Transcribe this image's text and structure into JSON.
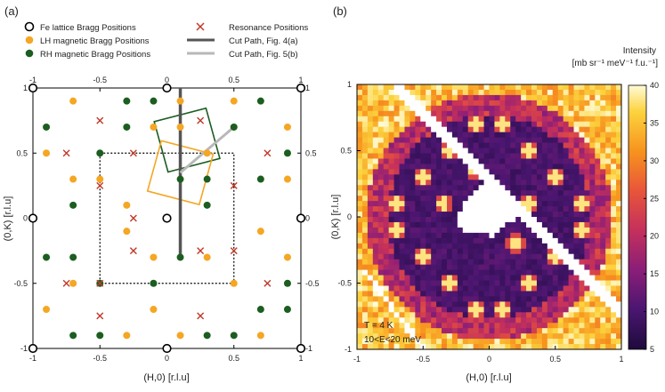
{
  "chart_data": [
    {
      "type": "scatter",
      "panel_label": "(a)",
      "xlabel": "(H,0) [r.l.u]",
      "ylabel": "(0,K) [r.l.u]",
      "xlim": [
        -1,
        1
      ],
      "ylim": [
        -1,
        1
      ],
      "ticks": [
        -1,
        -0.5,
        0,
        0.5,
        1
      ],
      "tick_labels": [
        "-1",
        "-0.5",
        "0",
        "0.5",
        "1"
      ],
      "legend": {
        "placement": "top",
        "entries": [
          {
            "key": "fe",
            "label": "Fe lattice Bragg Positions"
          },
          {
            "key": "lh",
            "label": "LH magnetic Bragg Positions"
          },
          {
            "key": "rh",
            "label": "RH magnetic Bragg Positions"
          },
          {
            "key": "res",
            "label": "Resonance Positions"
          },
          {
            "key": "cut4",
            "label": "Cut Path, Fig. 4(a)"
          },
          {
            "key": "cut5",
            "label": "Cut Path, Fig. 5(b)"
          }
        ]
      },
      "colors": {
        "fe": "#000000",
        "lh": "#f5a623",
        "rh": "#1b5e20",
        "res": "#c0392b",
        "cut4": "#555555",
        "cut5": "#b8b8b8"
      },
      "series": [
        {
          "name": "Fe lattice Bragg Positions",
          "points": [
            [
              0,
              0
            ],
            [
              -1,
              -1
            ],
            [
              0,
              -1
            ],
            [
              1,
              -1
            ],
            [
              -1,
              0
            ],
            [
              1,
              0
            ],
            [
              -1,
              1
            ],
            [
              0,
              1
            ],
            [
              1,
              1
            ]
          ]
        },
        {
          "name": "LH magnetic Bragg Positions",
          "points": [
            [
              -0.7,
              0.9
            ],
            [
              0.5,
              0.9
            ],
            [
              0.9,
              0.7
            ],
            [
              -0.9,
              0.5
            ],
            [
              0.9,
              -0.3
            ],
            [
              -0.3,
              -0.9
            ],
            [
              0.7,
              -0.9
            ],
            [
              -0.7,
              0.3
            ],
            [
              -0.1,
              0.7
            ],
            [
              0.9,
              0.3
            ],
            [
              0.1,
              0.7
            ],
            [
              0.3,
              0.5
            ],
            [
              0.7,
              -0.1
            ],
            [
              -0.5,
              0.3
            ],
            [
              -0.3,
              -0.1
            ],
            [
              -0.1,
              -0.7
            ],
            [
              0.5,
              -0.5
            ],
            [
              -0.7,
              -0.5
            ],
            [
              -0.1,
              -0.3
            ],
            [
              0.3,
              -0.3
            ],
            [
              -0.9,
              -0.7
            ],
            [
              0.1,
              0.9
            ],
            [
              -0.3,
              0.1
            ],
            [
              0.1,
              -0.9
            ],
            [
              0.5,
              0.7
            ]
          ]
        },
        {
          "name": "RH magnetic Bragg Positions",
          "points": [
            [
              -0.3,
              0.9
            ],
            [
              0.7,
              0.9
            ],
            [
              -0.9,
              0.7
            ],
            [
              0.5,
              0.7
            ],
            [
              -0.7,
              0.1
            ],
            [
              -0.1,
              0.9
            ],
            [
              0.9,
              0.5
            ],
            [
              -0.5,
              -0.5
            ],
            [
              0.3,
              0.1
            ],
            [
              0.1,
              0.3
            ],
            [
              -0.7,
              -0.3
            ],
            [
              -0.9,
              -0.3
            ],
            [
              0.9,
              -0.5
            ],
            [
              -0.3,
              0.7
            ],
            [
              -0.5,
              0.5
            ],
            [
              0.3,
              0.3
            ],
            [
              0.7,
              0.3
            ],
            [
              0.9,
              -0.7
            ],
            [
              0.7,
              -0.7
            ],
            [
              -0.1,
              -0.5
            ],
            [
              0.1,
              -0.3
            ],
            [
              -0.5,
              -0.9
            ],
            [
              0.5,
              -0.9
            ],
            [
              -0.7,
              -0.9
            ],
            [
              0.3,
              -0.9
            ]
          ]
        },
        {
          "name": "Resonance Positions",
          "points": [
            [
              -0.5,
              0.75
            ],
            [
              0.25,
              0.75
            ],
            [
              0.75,
              0.5
            ],
            [
              -0.75,
              0.5
            ],
            [
              -0.25,
              0.5
            ],
            [
              0.5,
              0.25
            ],
            [
              -0.5,
              0.25
            ],
            [
              0.25,
              -0.25
            ],
            [
              -0.25,
              -0.25
            ],
            [
              -0.75,
              -0.5
            ],
            [
              0.75,
              -0.5
            ],
            [
              -0.5,
              -0.75
            ],
            [
              0.25,
              -0.75
            ],
            [
              -0.25,
              0.0
            ],
            [
              0.5,
              -0.25
            ],
            [
              -0.5,
              -0.5
            ]
          ]
        }
      ],
      "cut_path_4a": [
        [
          0.1,
          1.0
        ],
        [
          0.1,
          -0.3
        ]
      ],
      "cut_path_5b": [
        [
          0.1,
          0.35
        ],
        [
          0.5,
          0.7
        ]
      ],
      "dotted_square": {
        "h": [
          -0.5,
          0.5
        ],
        "k": [
          -0.5,
          0.5
        ]
      },
      "squares": [
        {
          "color": "rh",
          "center": [
            0.15,
            0.6
          ],
          "half": 0.2,
          "angle_deg": 15
        },
        {
          "color": "lh",
          "center": [
            0.1,
            0.35
          ],
          "half": 0.2,
          "angle_deg": -15
        }
      ]
    },
    {
      "type": "heatmap",
      "panel_label": "(b)",
      "xlabel": "(H,0) [r.l.u]",
      "ylabel": "(0,K) [r.l.u]",
      "xlim": [
        -1,
        1
      ],
      "ylim": [
        -1,
        1
      ],
      "ticks": [
        -1,
        -0.5,
        0,
        0.5,
        1
      ],
      "tick_labels": [
        "-1",
        "-0.5",
        "0",
        "0.5",
        "1"
      ],
      "colorbar": {
        "title": "Intensity",
        "units": "[mb sr⁻¹ meV⁻¹ f.u.⁻¹]",
        "range": [
          5,
          40
        ],
        "ticks": [
          5,
          10,
          15,
          20,
          25,
          30,
          35,
          40
        ],
        "tick_labels": [
          "5",
          "10",
          "15",
          "20",
          "25",
          "30",
          "35",
          "40"
        ]
      },
      "annotation_temperature": "T = 4 K",
      "annotation_energy": "10<E<20 meV",
      "ring_radius": 0.85,
      "ring_intensity": 18,
      "inside_intensity": 9,
      "outside_intensity": 36,
      "bright_spots": [
        [
          -0.1,
          0.7
        ],
        [
          0.1,
          0.7
        ],
        [
          -0.3,
          0.5
        ],
        [
          0.3,
          0.5
        ],
        [
          -0.5,
          0.3
        ],
        [
          0.5,
          0.3
        ],
        [
          -0.7,
          0.1
        ],
        [
          0.7,
          0.1
        ],
        [
          -0.7,
          -0.1
        ],
        [
          0.7,
          -0.1
        ],
        [
          -0.5,
          -0.3
        ],
        [
          0.5,
          -0.3
        ],
        [
          -0.3,
          -0.5
        ],
        [
          0.3,
          -0.5
        ],
        [
          -0.1,
          -0.7
        ],
        [
          0.1,
          -0.7
        ],
        [
          -0.35,
          0.1
        ],
        [
          0.3,
          0.1
        ],
        [
          -0.1,
          0.35
        ],
        [
          0.2,
          -0.2
        ]
      ],
      "spot_intensity": 38,
      "masked_region": [
        [
          -0.22,
          0.05
        ],
        [
          -0.05,
          0.27
        ],
        [
          0.25,
          0.05
        ],
        [
          0.05,
          -0.15
        ],
        [
          -0.22,
          -0.1
        ]
      ],
      "masked_diagonal": [
        [
          -0.7,
          0.98
        ],
        [
          1.0,
          -0.72
        ]
      ],
      "masked_diagonal_2": [
        [
          -0.95,
          -0.4
        ],
        [
          -0.5,
          -1.0
        ]
      ]
    }
  ]
}
